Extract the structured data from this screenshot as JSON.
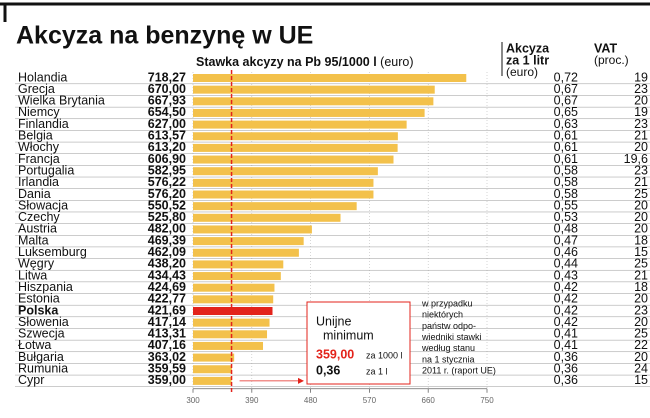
{
  "chart_data": {
    "type": "bar",
    "orientation": "horizontal",
    "title": "Akcyza na benzynę w UE",
    "x_label": "Stawka akcyzy na Pb 95/1000 l",
    "x_unit": "(euro)",
    "categories": [
      "Holandia",
      "Grecja",
      "Wielka Brytania",
      "Niemcy",
      "Finlandia",
      "Belgia",
      "Włochy",
      "Francja",
      "Portugalia",
      "Irlandia",
      "Dania",
      "Słowacja",
      "Czechy",
      "Austria",
      "Malta",
      "Luksemburg",
      "Węgry",
      "Litwa",
      "Hiszpania",
      "Estonia",
      "Polska",
      "Słowenia",
      "Szwecja",
      "Łotwa",
      "Bułgaria",
      "Rumunia",
      "Cypr"
    ],
    "values": [
      718.27,
      670.0,
      667.93,
      654.5,
      627.0,
      613.57,
      613.2,
      606.9,
      582.95,
      576.22,
      576.2,
      550.52,
      525.8,
      482.0,
      469.39,
      462.09,
      438.2,
      434.43,
      424.69,
      422.77,
      421.69,
      417.14,
      413.31,
      407.16,
      363.02,
      359.59,
      359.0
    ],
    "value_labels": [
      "718,27",
      "670,00",
      "667,93",
      "654,50",
      "627,00",
      "613,57",
      "613,20",
      "606,90",
      "582,95",
      "576,22",
      "576,20",
      "550,52",
      "525,80",
      "482,00",
      "469,39",
      "462,09",
      "438,20",
      "434,43",
      "424,69",
      "422,77",
      "421,69",
      "417,14",
      "413,31",
      "407,16",
      "363,02",
      "359,59",
      "359,00"
    ],
    "color": "#f3c14b",
    "highlight": {
      "category": 20,
      "color": "#e3231b"
    },
    "xlim": [
      300,
      750
    ],
    "xticks": [
      300,
      390,
      480,
      570,
      660,
      750
    ],
    "columns": [
      {
        "title_lines": [
          "Akcyza",
          "za 1 litr"
        ],
        "unit": "(euro)",
        "values": [
          0.72,
          0.67,
          0.67,
          0.65,
          0.63,
          0.61,
          0.61,
          0.61,
          0.58,
          0.58,
          0.58,
          0.55,
          0.53,
          0.48,
          0.47,
          0.46,
          0.44,
          0.43,
          0.42,
          0.42,
          0.42,
          0.42,
          0.41,
          0.41,
          0.36,
          0.36,
          0.36
        ],
        "value_labels": [
          "0,72",
          "0,67",
          "0,67",
          "0,65",
          "0,63",
          "0,61",
          "0,61",
          "0,61",
          "0,58",
          "0,58",
          "0,58",
          "0,55",
          "0,53",
          "0,48",
          "0,47",
          "0,46",
          "0,44",
          "0,43",
          "0,42",
          "0,42",
          "0,42",
          "0,42",
          "0,41",
          "0,41",
          "0,36",
          "0,36",
          "0,36"
        ]
      },
      {
        "title_lines": [
          "VAT"
        ],
        "unit": "(proc.)",
        "values": [
          19,
          23,
          20,
          19,
          23,
          21,
          20,
          19.6,
          23,
          21,
          25,
          20,
          20,
          20,
          18,
          15,
          25,
          21,
          18,
          20,
          23,
          20,
          25,
          22,
          20,
          24,
          15
        ],
        "value_labels": [
          "19",
          "23",
          "20",
          "19",
          "23",
          "21",
          "20",
          "19,6",
          "23",
          "21",
          "25",
          "20",
          "20",
          "20",
          "18",
          "15",
          "25",
          "21",
          "18",
          "20",
          "23",
          "20",
          "25",
          "22",
          "20",
          "24",
          "15"
        ]
      }
    ],
    "reference": {
      "value": 359.0,
      "color": "#e3231b",
      "label_lines": [
        "Unijne",
        "minimum"
      ],
      "value_label": "359,00",
      "value_unit": "za 1000 l",
      "per_liter": 0.36,
      "per_liter_label": "0,36",
      "per_liter_unit": "za 1 l"
    },
    "note_lines": [
      "w przypadku",
      "niektórych",
      "państw odpo-",
      "wiedniki stawki",
      "według stanu",
      "na 1 stycznia",
      "2011 r. (raport UE)"
    ]
  }
}
